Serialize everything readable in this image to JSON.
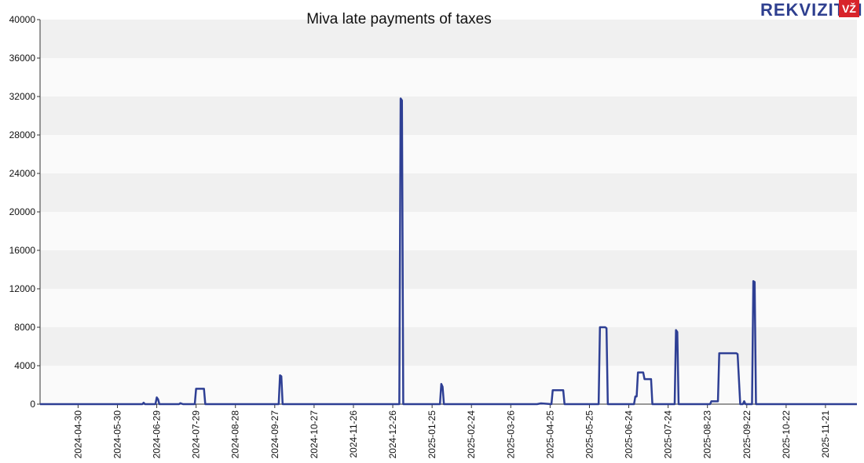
{
  "logo": {
    "text": "REKVIZITAI",
    "badge": "VŽ",
    "badge_color": "#d8232a",
    "text_color": "#2e3f8f"
  },
  "chart_data": {
    "type": "line",
    "title": "Miva late payments of taxes",
    "xlabel": "",
    "ylabel": "",
    "ylim": [
      0,
      40000
    ],
    "yticks": [
      0,
      4000,
      8000,
      12000,
      16000,
      20000,
      24000,
      28000,
      32000,
      36000,
      40000
    ],
    "xlim": [
      "2024-04-01",
      "2025-12-15"
    ],
    "xticks": [
      "2024-04-30",
      "2024-05-30",
      "2024-06-29",
      "2024-07-29",
      "2024-08-28",
      "2024-09-27",
      "2024-10-27",
      "2024-11-26",
      "2024-12-26",
      "2025-01-25",
      "2025-02-24",
      "2025-03-26",
      "2025-04-25",
      "2025-05-25",
      "2025-06-24",
      "2025-07-24",
      "2025-08-23",
      "2025-09-22",
      "2025-10-22",
      "2025-11-21"
    ],
    "grid": true,
    "line_color": "#2e3f94",
    "band_colors": [
      "#f0f0f0",
      "#fafafa"
    ],
    "series": [
      {
        "points": [
          [
            "2024-04-01",
            0
          ],
          [
            "2024-06-18",
            0
          ],
          [
            "2024-06-19",
            150
          ],
          [
            "2024-06-20",
            0
          ],
          [
            "2024-06-28",
            0
          ],
          [
            "2024-06-29",
            700
          ],
          [
            "2024-06-30",
            500
          ],
          [
            "2024-07-01",
            0
          ],
          [
            "2024-07-16",
            0
          ],
          [
            "2024-07-17",
            100
          ],
          [
            "2024-07-19",
            0
          ],
          [
            "2024-07-28",
            0
          ],
          [
            "2024-07-29",
            1600
          ],
          [
            "2024-08-04",
            1600
          ],
          [
            "2024-08-05",
            0
          ],
          [
            "2024-09-30",
            0
          ],
          [
            "2024-10-01",
            3000
          ],
          [
            "2024-10-02",
            2900
          ],
          [
            "2024-10-03",
            0
          ],
          [
            "2024-12-31",
            0
          ],
          [
            "2025-01-01",
            31800
          ],
          [
            "2025-01-02",
            31600
          ],
          [
            "2025-01-03",
            0
          ],
          [
            "2025-01-05",
            0
          ],
          [
            "2025-01-31",
            0
          ],
          [
            "2025-02-01",
            2100
          ],
          [
            "2025-02-02",
            1800
          ],
          [
            "2025-02-03",
            0
          ],
          [
            "2025-04-15",
            0
          ],
          [
            "2025-04-18",
            80
          ],
          [
            "2025-04-26",
            0
          ],
          [
            "2025-04-27",
            1450
          ],
          [
            "2025-05-05",
            1450
          ],
          [
            "2025-05-06",
            0
          ],
          [
            "2025-06-01",
            0
          ],
          [
            "2025-06-02",
            8000
          ],
          [
            "2025-06-06",
            8000
          ],
          [
            "2025-06-07",
            7900
          ],
          [
            "2025-06-08",
            0
          ],
          [
            "2025-06-28",
            0
          ],
          [
            "2025-06-29",
            800
          ],
          [
            "2025-06-30",
            800
          ],
          [
            "2025-07-01",
            3300
          ],
          [
            "2025-07-05",
            3300
          ],
          [
            "2025-07-06",
            2600
          ],
          [
            "2025-07-11",
            2600
          ],
          [
            "2025-07-12",
            0
          ],
          [
            "2025-07-29",
            0
          ],
          [
            "2025-07-30",
            7700
          ],
          [
            "2025-07-31",
            7500
          ],
          [
            "2025-08-01",
            0
          ],
          [
            "2025-08-25",
            0
          ],
          [
            "2025-08-26",
            300
          ],
          [
            "2025-08-31",
            300
          ],
          [
            "2025-09-01",
            5300
          ],
          [
            "2025-09-14",
            5300
          ],
          [
            "2025-09-15",
            5200
          ],
          [
            "2025-09-17",
            0
          ],
          [
            "2025-09-19",
            0
          ],
          [
            "2025-09-20",
            300
          ],
          [
            "2025-09-21",
            0
          ],
          [
            "2025-09-26",
            0
          ],
          [
            "2025-09-27",
            12800
          ],
          [
            "2025-09-28",
            12700
          ],
          [
            "2025-09-29",
            0
          ],
          [
            "2025-12-15",
            0
          ]
        ]
      }
    ]
  }
}
